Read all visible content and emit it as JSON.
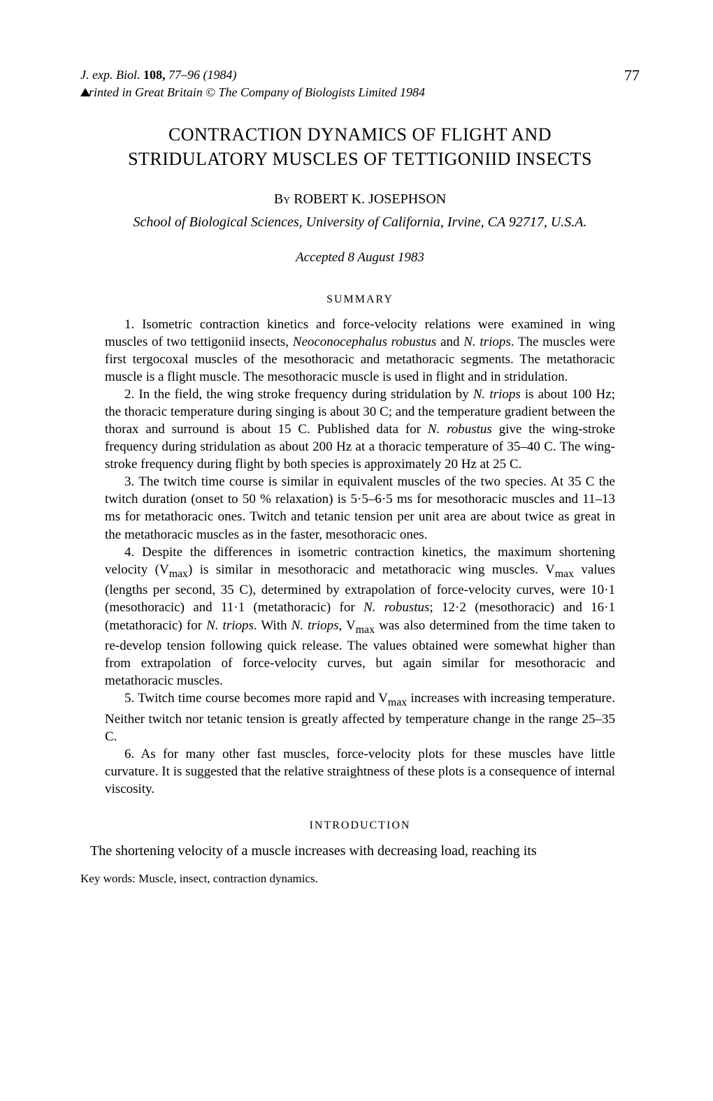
{
  "header": {
    "journal_ref_line1_italic_prefix": "J. exp. Biol.",
    "journal_ref_line1_bold": " 108,",
    "journal_ref_line1_italic_suffix": " 77–96 (1984)",
    "journal_ref_line2_prefix": "rinted in Great Britain ",
    "copyright_symbol": "©",
    "journal_ref_line2_suffix": " The Company of Biologists Limited 1984",
    "page_number": "77"
  },
  "title": "CONTRACTION DYNAMICS OF FLIGHT AND STRIDULATORY MUSCLES OF TETTIGONIID INSECTS",
  "byline": {
    "by": "By",
    "author": " ROBERT K. JOSEPHSON"
  },
  "affiliation": "School of Biological Sciences, University of California, Irvine, CA 92717, U.S.A.",
  "accepted": "Accepted 8 August 1983",
  "summary_heading": "SUMMARY",
  "summary": {
    "p1_a": "1. Isometric contraction kinetics and force-velocity relations were examined in wing muscles of two tettigoniid insects, ",
    "p1_i1": "Neoconocephalus robustus",
    "p1_b": " and ",
    "p1_i2": "N. triops",
    "p1_c": ". The muscles were first tergocoxal muscles of the mesothoracic and metathoracic segments. The metathoracic muscle is a flight muscle. The mesothoracic muscle is used in flight and in stridulation.",
    "p2_a": "2. In the field, the wing stroke frequency during stridulation by ",
    "p2_i1": "N. triops",
    "p2_b": " is about 100 Hz; the thoracic temperature during singing is about 30 C; and the temperature gradient between the thorax and surround is about 15 C. Published data for ",
    "p2_i2": "N. robustus",
    "p2_c": " give the wing-stroke frequency during stridulation as about 200 Hz at a thoracic temperature of 35–40 C. The wing-stroke frequency during flight by both species is approximately 20 Hz at 25 C.",
    "p3": "3. The twitch time course is similar in equivalent muscles of the two species. At 35 C the twitch duration (onset to 50 % relaxation) is 5·5–6·5 ms for mesothoracic muscles and 11–13 ms for metathoracic ones. Twitch and tetanic tension per unit area are about twice as great in the metathoracic muscles as in the faster, mesothoracic ones.",
    "p4_a": "4. Despite the differences in isometric contraction kinetics, the maximum shortening velocity (V",
    "p4_sub1": "max",
    "p4_b": ") is similar in mesothoracic and metathoracic wing muscles. V",
    "p4_sub2": "max",
    "p4_c": " values (lengths per second, 35 C), determined by extrapolation of force-velocity curves, were 10·1 (mesothoracic) and 11·1 (metathoracic) for ",
    "p4_i1": "N. robustus",
    "p4_d": "; 12·2 (mesothoracic) and 16·1 (metathoracic) for ",
    "p4_i2": "N. triops",
    "p4_e": ". With ",
    "p4_i3": "N. triops",
    "p4_f": ", V",
    "p4_sub3": "max",
    "p4_g": " was also determined from the time taken to re-develop tension following quick release. The values obtained were somewhat higher than from extrapolation of force-velocity curves, but again similar for mesothoracic and metathoracic muscles.",
    "p5_a": "5. Twitch time course becomes more rapid and V",
    "p5_sub1": "max",
    "p5_b": " increases with increasing temperature. Neither twitch nor tetanic tension is greatly affected by temperature change in the range 25–35 C.",
    "p6": "6. As for many other fast muscles, force-velocity plots for these muscles have little curvature. It is suggested that the relative straightness of these plots is a consequence of internal viscosity."
  },
  "intro_heading": "INTRODUCTION",
  "intro_text": "The shortening velocity of a muscle increases with decreasing load, reaching its",
  "keywords": "Key words: Muscle, insect, contraction dynamics."
}
